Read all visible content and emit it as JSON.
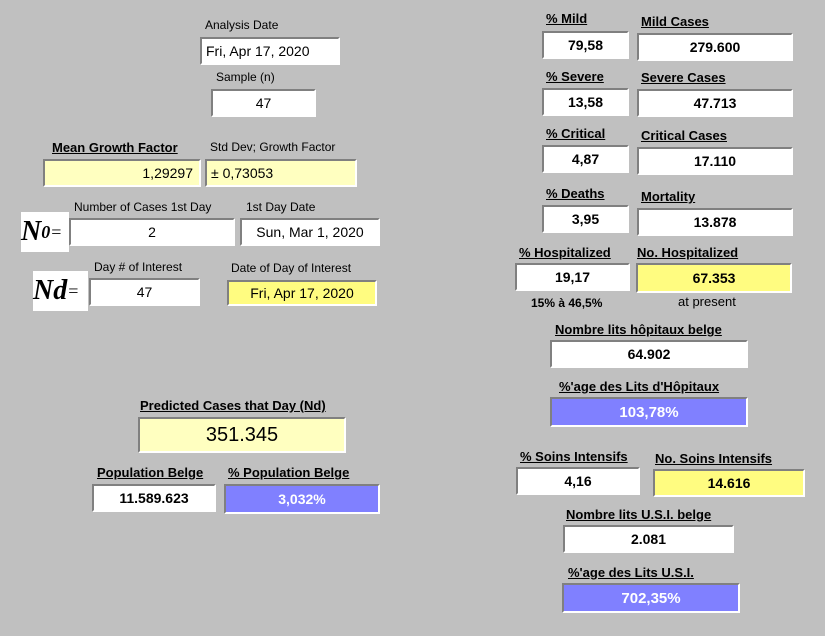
{
  "left": {
    "analysis_date_label": "Analysis Date",
    "analysis_date": "Fri, Apr 17, 2020",
    "sample_label": "Sample (n)",
    "sample": "47",
    "mean_growth_label": "Mean Growth Factor",
    "mean_growth": "1,29297",
    "std_dev_label": "Std Dev; Growth Factor",
    "std_dev": "± 0,73053",
    "n0_symbol": "N",
    "n0_sub": "0",
    "equals": "=",
    "cases_first_day_label": "Number of Cases 1st Day",
    "cases_first_day": "2",
    "first_day_date_label": "1st Day Date",
    "first_day_date": "Sun, Mar 1, 2020",
    "nd_symbol": "Nd",
    "day_interest_label": "Day # of Interest",
    "day_interest": "47",
    "date_interest_label": "Date of Day of Interest",
    "date_interest": "Fri, Apr 17, 2020",
    "predicted_label": "Predicted Cases that Day (Nd)",
    "predicted": "351.345",
    "pop_label": "Population Belge",
    "pop": "11.589.623",
    "pct_pop_label": "% Population Belge",
    "pct_pop": "3,032%"
  },
  "right": {
    "pct_mild_label": "% Mild",
    "pct_mild": "79,58",
    "mild_cases_label": "Mild Cases",
    "mild_cases": "279.600",
    "pct_severe_label": "% Severe",
    "pct_severe": "13,58",
    "severe_cases_label": "Severe Cases",
    "severe_cases": "47.713",
    "pct_critical_label": "% Critical",
    "pct_critical": "4,87",
    "critical_cases_label": "Critical Cases",
    "critical_cases": "17.110",
    "pct_deaths_label": "% Deaths",
    "pct_deaths": "3,95",
    "mortality_label": "Mortality",
    "mortality": "13.878",
    "pct_hosp_label": "% Hospitalized",
    "pct_hosp": "19,17",
    "hosp_range": "15% à 46,5%",
    "no_hosp_label": "No. Hospitalized",
    "no_hosp": "67.353",
    "at_present": "at present",
    "beds_label": "Nombre lits hôpitaux belge",
    "beds": "64.902",
    "pct_beds_label": "%'age des Lits d'Hôpitaux",
    "pct_beds": "103,78%",
    "pct_icu_label": "% Soins Intensifs",
    "pct_icu": "4,16",
    "no_icu_label": "No. Soins Intensifs",
    "no_icu": "14.616",
    "icu_beds_label": "Nombre lits U.S.I. belge",
    "icu_beds": "2.081",
    "pct_icu_beds_label": "%'age des Lits U.S.I.",
    "pct_icu_beds": "702,35%"
  },
  "colors": {
    "background": "#c0c0c0",
    "input_yellow": "#ffffc0",
    "highlight_yellow": "#fffc80",
    "result_blue": "#8080ff"
  }
}
